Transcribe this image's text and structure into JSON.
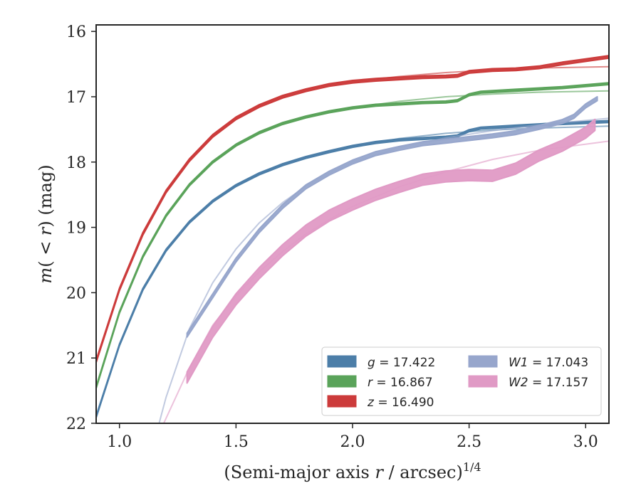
{
  "chart_data": {
    "type": "line",
    "xlabel": "(Semi-major axis r / arcsec)^(1/4)",
    "ylabel": "m(< r) (mag)",
    "xlim": [
      0.9,
      3.1
    ],
    "ylim": [
      22,
      15.9
    ],
    "y_inverted": true,
    "grid": false,
    "legend_position": "lower-right",
    "x_ticks": [
      1.0,
      1.5,
      2.0,
      2.5,
      3.0
    ],
    "x_tick_labels": [
      "1.0",
      "1.5",
      "2.0",
      "2.5",
      "3.0"
    ],
    "y_ticks": [
      16,
      17,
      18,
      19,
      20,
      21,
      22
    ],
    "y_tick_labels": [
      "16",
      "17",
      "18",
      "19",
      "20",
      "21",
      "22"
    ],
    "series": [
      {
        "name": "g = 17.422",
        "label_var": "g",
        "label_value": "17.422",
        "color": "#4c7ea8",
        "band_width": 0.03,
        "data": [
          [
            0.9,
            21.9
          ],
          [
            1.0,
            20.8
          ],
          [
            1.1,
            19.95
          ],
          [
            1.2,
            19.35
          ],
          [
            1.3,
            18.92
          ],
          [
            1.4,
            18.6
          ],
          [
            1.5,
            18.36
          ],
          [
            1.6,
            18.18
          ],
          [
            1.7,
            18.04
          ],
          [
            1.8,
            17.93
          ],
          [
            1.9,
            17.84
          ],
          [
            2.0,
            17.76
          ],
          [
            2.1,
            17.7
          ],
          [
            2.2,
            17.66
          ],
          [
            2.3,
            17.64
          ],
          [
            2.4,
            17.62
          ],
          [
            2.45,
            17.6
          ],
          [
            2.5,
            17.52
          ],
          [
            2.55,
            17.48
          ],
          [
            2.7,
            17.45
          ],
          [
            2.9,
            17.41
          ],
          [
            3.1,
            17.38
          ]
        ],
        "model": [
          [
            0.9,
            21.9
          ],
          [
            1.0,
            20.8
          ],
          [
            1.1,
            19.95
          ],
          [
            1.2,
            19.35
          ],
          [
            1.3,
            18.92
          ],
          [
            1.4,
            18.6
          ],
          [
            1.5,
            18.36
          ],
          [
            1.6,
            18.18
          ],
          [
            1.7,
            18.04
          ],
          [
            1.8,
            17.93
          ],
          [
            1.9,
            17.84
          ],
          [
            2.0,
            17.76
          ],
          [
            2.2,
            17.64
          ],
          [
            2.4,
            17.56
          ],
          [
            2.6,
            17.51
          ],
          [
            2.8,
            17.48
          ],
          [
            3.1,
            17.45
          ]
        ]
      },
      {
        "name": "r = 16.867",
        "label_var": "r",
        "label_value": "16.867",
        "color": "#5aa35a",
        "band_width": 0.03,
        "data": [
          [
            0.9,
            21.45
          ],
          [
            1.0,
            20.3
          ],
          [
            1.1,
            19.45
          ],
          [
            1.2,
            18.82
          ],
          [
            1.3,
            18.35
          ],
          [
            1.4,
            18.0
          ],
          [
            1.5,
            17.74
          ],
          [
            1.6,
            17.55
          ],
          [
            1.7,
            17.41
          ],
          [
            1.8,
            17.31
          ],
          [
            1.9,
            17.23
          ],
          [
            2.0,
            17.17
          ],
          [
            2.1,
            17.13
          ],
          [
            2.2,
            17.11
          ],
          [
            2.3,
            17.09
          ],
          [
            2.4,
            17.08
          ],
          [
            2.45,
            17.06
          ],
          [
            2.5,
            16.97
          ],
          [
            2.55,
            16.93
          ],
          [
            2.7,
            16.9
          ],
          [
            2.9,
            16.86
          ],
          [
            3.1,
            16.8
          ]
        ],
        "model": [
          [
            0.9,
            21.45
          ],
          [
            1.0,
            20.3
          ],
          [
            1.1,
            19.45
          ],
          [
            1.2,
            18.82
          ],
          [
            1.3,
            18.35
          ],
          [
            1.4,
            18.0
          ],
          [
            1.5,
            17.74
          ],
          [
            1.6,
            17.55
          ],
          [
            1.7,
            17.41
          ],
          [
            1.8,
            17.31
          ],
          [
            1.9,
            17.23
          ],
          [
            2.0,
            17.17
          ],
          [
            2.2,
            17.07
          ],
          [
            2.4,
            17.0
          ],
          [
            2.6,
            16.96
          ],
          [
            2.8,
            16.93
          ],
          [
            3.1,
            16.91
          ]
        ]
      },
      {
        "name": "z = 16.490",
        "label_var": "z",
        "label_value": "16.490",
        "color": "#cc3b3b",
        "band_width": 0.04,
        "data": [
          [
            0.9,
            21.05
          ],
          [
            1.0,
            19.95
          ],
          [
            1.1,
            19.1
          ],
          [
            1.2,
            18.45
          ],
          [
            1.3,
            17.97
          ],
          [
            1.4,
            17.6
          ],
          [
            1.5,
            17.33
          ],
          [
            1.6,
            17.14
          ],
          [
            1.7,
            17.0
          ],
          [
            1.8,
            16.9
          ],
          [
            1.9,
            16.82
          ],
          [
            2.0,
            16.77
          ],
          [
            2.1,
            16.74
          ],
          [
            2.2,
            16.72
          ],
          [
            2.3,
            16.7
          ],
          [
            2.4,
            16.69
          ],
          [
            2.45,
            16.68
          ],
          [
            2.5,
            16.62
          ],
          [
            2.6,
            16.59
          ],
          [
            2.7,
            16.58
          ],
          [
            2.8,
            16.55
          ],
          [
            2.9,
            16.49
          ],
          [
            3.0,
            16.44
          ],
          [
            3.1,
            16.39
          ]
        ],
        "model": [
          [
            0.9,
            21.05
          ],
          [
            1.0,
            19.95
          ],
          [
            1.1,
            19.1
          ],
          [
            1.2,
            18.45
          ],
          [
            1.3,
            17.97
          ],
          [
            1.4,
            17.6
          ],
          [
            1.5,
            17.33
          ],
          [
            1.6,
            17.14
          ],
          [
            1.7,
            17.0
          ],
          [
            1.8,
            16.9
          ],
          [
            1.9,
            16.82
          ],
          [
            2.0,
            16.77
          ],
          [
            2.2,
            16.69
          ],
          [
            2.4,
            16.63
          ],
          [
            2.6,
            16.59
          ],
          [
            2.8,
            16.56
          ],
          [
            3.1,
            16.54
          ]
        ]
      },
      {
        "name": "W1 = 17.043",
        "label_var": "W1",
        "label_value": "17.043",
        "color": "#97a6cc",
        "band_width": 0.06,
        "data": [
          [
            1.29,
            20.65
          ],
          [
            1.4,
            20.05
          ],
          [
            1.5,
            19.5
          ],
          [
            1.6,
            19.05
          ],
          [
            1.7,
            18.68
          ],
          [
            1.8,
            18.38
          ],
          [
            1.9,
            18.17
          ],
          [
            2.0,
            18.0
          ],
          [
            2.1,
            17.87
          ],
          [
            2.2,
            17.79
          ],
          [
            2.3,
            17.72
          ],
          [
            2.4,
            17.68
          ],
          [
            2.5,
            17.64
          ],
          [
            2.6,
            17.6
          ],
          [
            2.7,
            17.55
          ],
          [
            2.8,
            17.47
          ],
          [
            2.9,
            17.38
          ],
          [
            2.95,
            17.3
          ],
          [
            3.0,
            17.14
          ],
          [
            3.05,
            17.03
          ]
        ],
        "model": [
          [
            1.17,
            22.0
          ],
          [
            1.2,
            21.6
          ],
          [
            1.3,
            20.55
          ],
          [
            1.4,
            19.85
          ],
          [
            1.5,
            19.33
          ],
          [
            1.6,
            18.93
          ],
          [
            1.7,
            18.62
          ],
          [
            1.8,
            18.37
          ],
          [
            1.9,
            18.17
          ],
          [
            2.0,
            18.0
          ],
          [
            2.2,
            17.78
          ],
          [
            2.4,
            17.63
          ],
          [
            2.6,
            17.52
          ],
          [
            2.8,
            17.43
          ],
          [
            3.1,
            17.33
          ]
        ]
      },
      {
        "name": "W2 = 17.157",
        "label_var": "W2",
        "label_value": "17.157",
        "color": "#e09ac5",
        "band_width": 0.17,
        "data": [
          [
            1.29,
            21.3
          ],
          [
            1.4,
            20.6
          ],
          [
            1.5,
            20.1
          ],
          [
            1.6,
            19.7
          ],
          [
            1.7,
            19.35
          ],
          [
            1.8,
            19.05
          ],
          [
            1.9,
            18.82
          ],
          [
            2.0,
            18.65
          ],
          [
            2.1,
            18.5
          ],
          [
            2.2,
            18.38
          ],
          [
            2.3,
            18.27
          ],
          [
            2.4,
            18.22
          ],
          [
            2.5,
            18.2
          ],
          [
            2.6,
            18.21
          ],
          [
            2.7,
            18.1
          ],
          [
            2.8,
            17.9
          ],
          [
            2.9,
            17.75
          ],
          [
            3.0,
            17.55
          ],
          [
            3.04,
            17.43
          ]
        ],
        "model": [
          [
            1.19,
            22.0
          ],
          [
            1.3,
            21.15
          ],
          [
            1.4,
            20.5
          ],
          [
            1.5,
            20.05
          ],
          [
            1.6,
            19.68
          ],
          [
            1.7,
            19.37
          ],
          [
            1.8,
            19.1
          ],
          [
            1.9,
            18.88
          ],
          [
            2.0,
            18.68
          ],
          [
            2.2,
            18.38
          ],
          [
            2.4,
            18.15
          ],
          [
            2.6,
            17.96
          ],
          [
            2.8,
            17.82
          ],
          [
            3.1,
            17.68
          ]
        ]
      }
    ]
  }
}
